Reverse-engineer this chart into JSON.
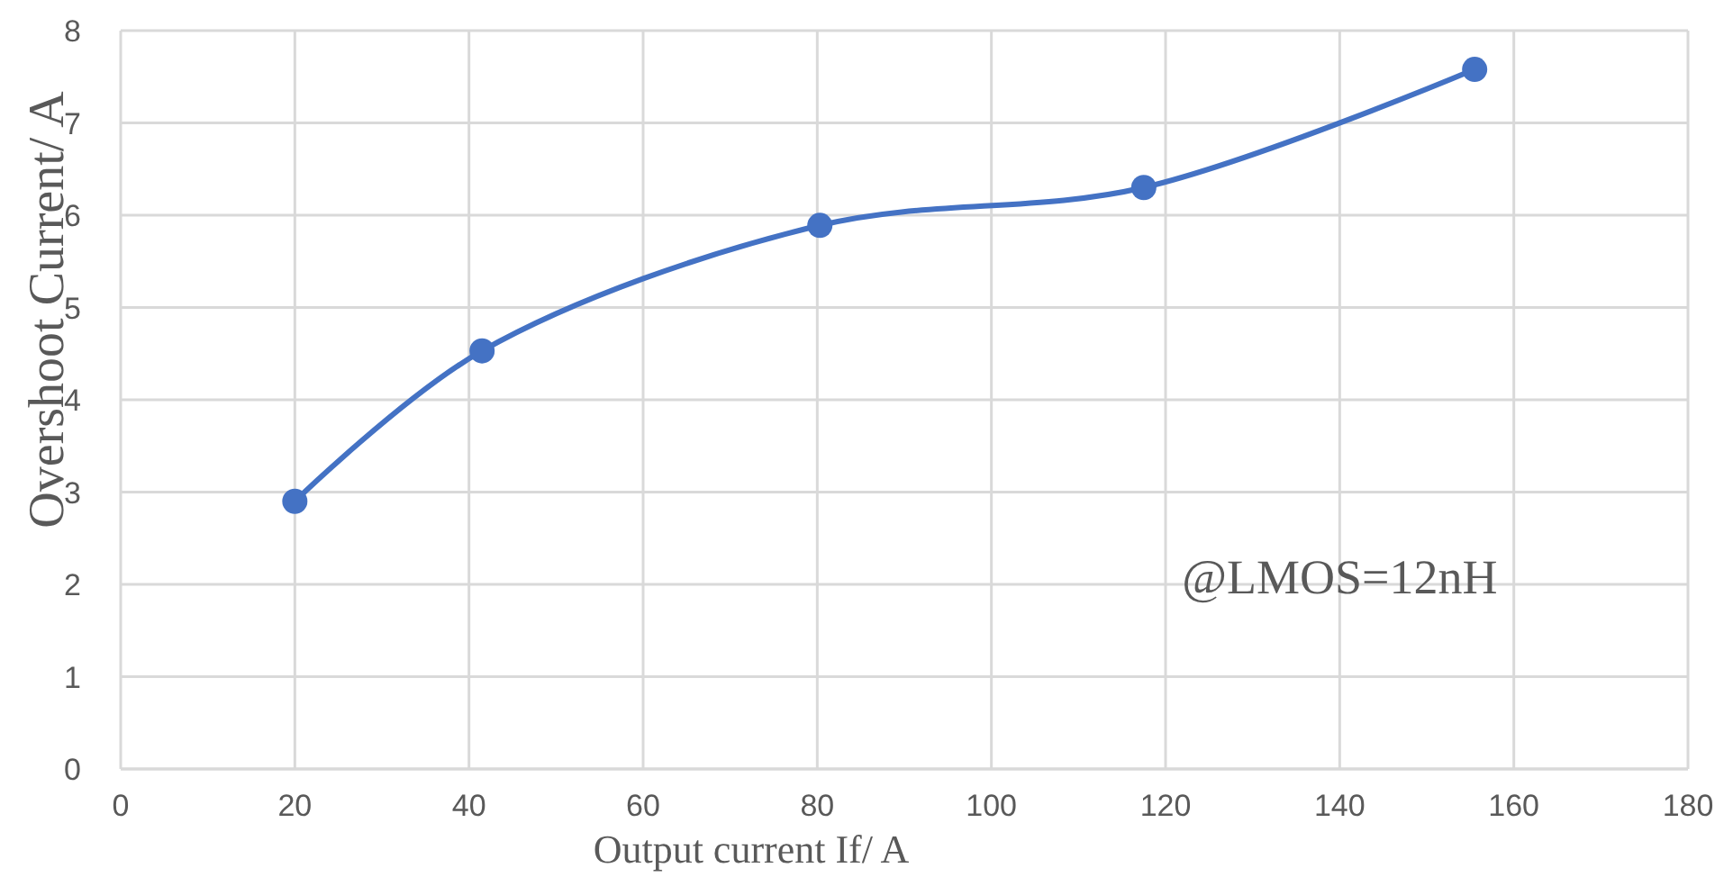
{
  "chart_data": {
    "type": "line",
    "xlabel": "Output current If/ A",
    "ylabel": "Overshoot Current/ A",
    "x": [
      20,
      41.5,
      80.3,
      117.5,
      155.5
    ],
    "series": [
      {
        "color": "#4472c4",
        "values": [
          2.9,
          4.53,
          5.89,
          6.3,
          7.58
        ]
      }
    ],
    "xlim": [
      0,
      180
    ],
    "xticks": [
      0,
      20,
      40,
      60,
      80,
      100,
      120,
      140,
      160,
      180
    ],
    "ylim": [
      0,
      8
    ],
    "yticks": [
      0,
      1,
      2,
      3,
      4,
      5,
      6,
      7,
      8
    ],
    "grid": true,
    "marker": "circle",
    "line_style": "solid",
    "annotations": [
      "@LMOS=12nH"
    ]
  }
}
